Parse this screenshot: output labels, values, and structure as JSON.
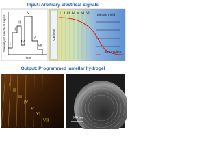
{
  "input": {
    "title": "Input: Arbitrary Electrical Signals",
    "plot": {
      "ylabel": "Intensity of electrical signal",
      "xlabel": "Time",
      "steps": [
        "I",
        "II",
        "III",
        "IV",
        "V",
        "VI",
        "VII"
      ]
    },
    "schematic": {
      "cathode": "Cathode",
      "field": "Electric Field",
      "gradient": "pH Gradient",
      "columns": [
        "I",
        "II",
        "III",
        "IV",
        "V",
        "VI",
        "VII"
      ]
    }
  },
  "output": {
    "title": "Output: Programmed lamellar hydrogel",
    "photo_labels": [
      "I",
      "II",
      "III",
      "IV",
      "V",
      "VI",
      "VII"
    ],
    "scale_bar": "100 μm"
  }
}
